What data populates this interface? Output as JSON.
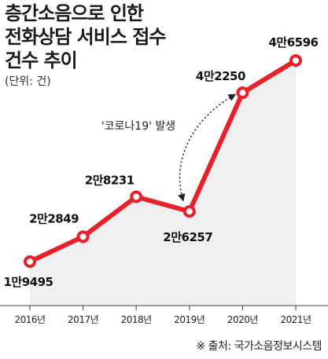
{
  "title_lines": [
    "층간소음으로 인한",
    "전화상담 서비스 접수",
    "건수 추이"
  ],
  "unit": "(단위: 건)",
  "source": "※ 출처: 국가소음정보시스템",
  "colors": {
    "line": "#e8202a",
    "area": "#efefef",
    "marker_fill": "#ffffff"
  },
  "chart_data": {
    "type": "area",
    "title": "층간소음으로 인한 전화상담 서비스 접수 건수 추이",
    "unit": "(단위: 건)",
    "categories": [
      "2016년",
      "2017년",
      "2018년",
      "2019년",
      "2020년",
      "2021년"
    ],
    "values": [
      19495,
      22849,
      28231,
      26257,
      42250,
      46596
    ],
    "data_labels": [
      "1만9495",
      "2만2849",
      "2만8231",
      "2만6257",
      "4만2250",
      "4만6596"
    ],
    "annotations": [
      {
        "text": "'코로나19' 발생",
        "from": "2019년",
        "to": "2020년"
      }
    ],
    "grid": false,
    "legend": "none"
  }
}
